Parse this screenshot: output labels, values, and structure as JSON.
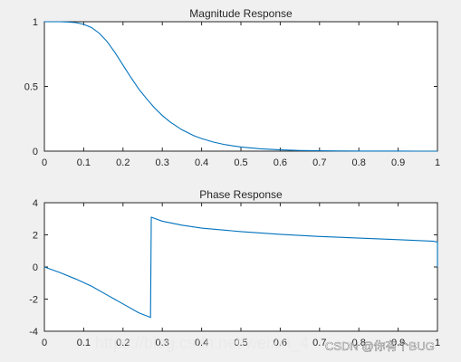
{
  "chart_data": [
    {
      "type": "line",
      "title": "Magnitude Response",
      "xlim": [
        0,
        1
      ],
      "ylim": [
        0,
        1
      ],
      "xticks": [
        0,
        0.1,
        0.2,
        0.3,
        0.4,
        0.5,
        0.6,
        0.7,
        0.8,
        0.9,
        1
      ],
      "yticks": [
        0,
        0.5,
        1
      ],
      "grid": false,
      "color": "#0072bd",
      "series": [
        {
          "x": [
            0,
            0.02,
            0.04,
            0.06,
            0.08,
            0.1,
            0.12,
            0.14,
            0.16,
            0.18,
            0.2,
            0.22,
            0.24,
            0.26,
            0.28,
            0.3,
            0.32,
            0.35,
            0.38,
            0.4,
            0.43,
            0.46,
            0.5,
            0.55,
            0.6,
            0.65,
            0.7,
            0.75,
            0.8,
            0.85,
            0.9,
            0.95,
            1
          ],
          "y": [
            1,
            1,
            1,
            0.998,
            0.993,
            0.98,
            0.955,
            0.91,
            0.845,
            0.76,
            0.665,
            0.57,
            0.48,
            0.405,
            0.335,
            0.275,
            0.225,
            0.165,
            0.12,
            0.097,
            0.07,
            0.05,
            0.032,
            0.018,
            0.01,
            0.005,
            0.003,
            0.0015,
            0.0008,
            0.0004,
            0.0002,
            0.0001,
            0
          ]
        }
      ]
    },
    {
      "type": "line",
      "title": "Phase Response",
      "xlim": [
        0,
        1
      ],
      "ylim": [
        -4,
        4
      ],
      "xticks": [
        0,
        0.1,
        0.2,
        0.3,
        0.4,
        0.5,
        0.6,
        0.7,
        0.8,
        0.9,
        1
      ],
      "yticks": [
        -4,
        -2,
        0,
        2,
        4
      ],
      "grid": false,
      "color": "#0072bd",
      "series": [
        {
          "x": [
            0,
            0.04,
            0.08,
            0.12,
            0.16,
            0.2,
            0.24,
            0.27,
            0.272,
            0.3,
            0.35,
            0.4,
            0.5,
            0.6,
            0.7,
            0.8,
            0.9,
            0.99,
            1,
            1
          ],
          "y": [
            0,
            -0.35,
            -0.75,
            -1.2,
            -1.75,
            -2.3,
            -2.85,
            -3.14,
            3.1,
            2.85,
            2.6,
            2.42,
            2.2,
            2.03,
            1.9,
            1.8,
            1.7,
            1.6,
            1.55,
            0
          ]
        }
      ]
    }
  ],
  "watermark": {
    "url_text": "https://blog.csdn.net/weixin_4",
    "label": "CSDN @你有个BUG"
  }
}
